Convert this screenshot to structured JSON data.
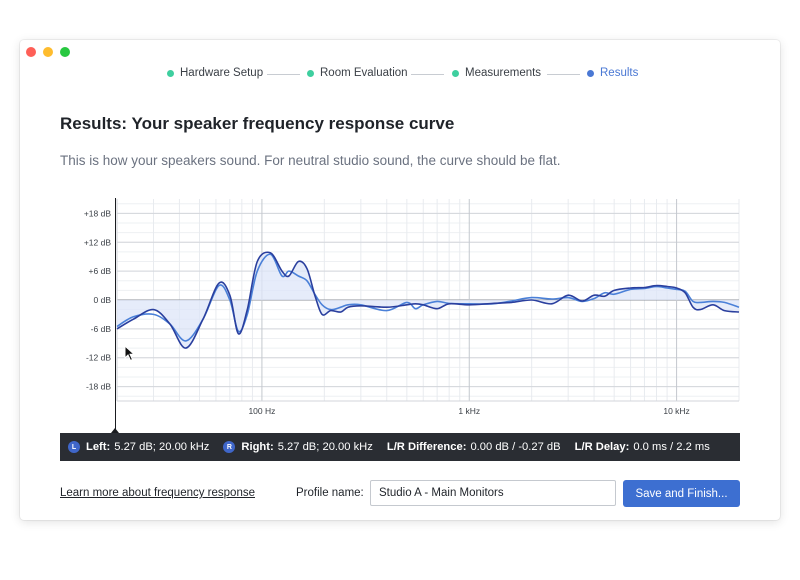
{
  "colors": {
    "step_done": "#3ecf9f",
    "step_current": "#4a78d4",
    "traffic_red": "#fe5f57",
    "traffic_yellow": "#febc2e",
    "traffic_green": "#28c840",
    "curve_dark": "#2a3f9e",
    "curve_light": "#4a80d8",
    "fill": "#dde5f8",
    "accent": "#3d6fd1"
  },
  "steps": [
    {
      "label": "Hardware Setup",
      "state": "done"
    },
    {
      "label": "Room Evaluation",
      "state": "done"
    },
    {
      "label": "Measurements",
      "state": "done"
    },
    {
      "label": "Results",
      "state": "current"
    }
  ],
  "page": {
    "title": "Results: Your speaker frequency response curve",
    "subtitle": "This is how your speakers sound. For neutral studio sound, the curve should be flat."
  },
  "chart_data": {
    "type": "line",
    "x_scale": "log",
    "xlim": [
      20,
      20000
    ],
    "ylim": [
      -21,
      21
    ],
    "grid": true,
    "y_ticks": [
      {
        "value": 18,
        "label": "+18 dB"
      },
      {
        "value": 12,
        "label": "+12 dB"
      },
      {
        "value": 6,
        "label": "+6 dB"
      },
      {
        "value": 0,
        "label": "0 dB"
      },
      {
        "value": -6,
        "label": "-6 dB"
      },
      {
        "value": -12,
        "label": "-12 dB"
      },
      {
        "value": -18,
        "label": "-18 dB"
      }
    ],
    "x_ticks": [
      {
        "value": 100,
        "label": "100 Hz"
      },
      {
        "value": 1000,
        "label": "1 kHz"
      },
      {
        "value": 10000,
        "label": "10 kHz"
      }
    ],
    "series": [
      {
        "name": "Left",
        "x": [
          20,
          24,
          30,
          36,
          43,
          52,
          62,
          70,
          77,
          85,
          95,
          110,
          125,
          135,
          150,
          165,
          180,
          195,
          215,
          240,
          260,
          300,
          400,
          500,
          550,
          600,
          700,
          800,
          1000,
          1300,
          1600,
          2000,
          2500,
          3000,
          3500,
          4000,
          4500,
          5000,
          6000,
          7000,
          8000,
          9000,
          10000,
          11000,
          12000,
          13000,
          15000,
          17000,
          20000
        ],
        "y": [
          -6,
          -4,
          -2,
          -5,
          -10,
          -4,
          3.5,
          1,
          -7,
          -2,
          8,
          9.8,
          6,
          5,
          8,
          6.5,
          1,
          -3,
          -2.2,
          -2.5,
          -1.5,
          -1.2,
          -1.5,
          -1,
          -0.8,
          -1,
          -1.8,
          -0.8,
          -1,
          -0.7,
          -0.5,
          0,
          -0.8,
          1,
          -0.2,
          1,
          0.8,
          2,
          2.5,
          2.6,
          3,
          2.8,
          2.5,
          1.5,
          -1.5,
          -2,
          -1,
          -2.2,
          -2.5
        ]
      },
      {
        "name": "Right",
        "x": [
          20,
          24,
          30,
          36,
          43,
          52,
          62,
          70,
          77,
          85,
          95,
          110,
          125,
          135,
          150,
          165,
          180,
          195,
          215,
          240,
          260,
          300,
          400,
          500,
          550,
          600,
          700,
          800,
          1000,
          1300,
          1600,
          2000,
          2500,
          3000,
          3500,
          4000,
          4500,
          5000,
          6000,
          7000,
          8000,
          9000,
          10000,
          11000,
          12000,
          13000,
          15000,
          17000,
          20000
        ],
        "y": [
          -5.5,
          -3.5,
          -3,
          -5,
          -8.5,
          -4,
          3,
          0,
          -6.5,
          -3,
          6,
          9.5,
          5,
          6,
          5,
          4,
          1.2,
          -1,
          -2,
          -1.5,
          -1,
          -1,
          -2.2,
          -0.5,
          -1.8,
          -1,
          -0.3,
          -0.7,
          -0.8,
          -0.8,
          -0.2,
          0.5,
          0.2,
          0.5,
          -0.3,
          0.3,
          1.5,
          1.2,
          2.2,
          2.4,
          2.8,
          2.5,
          2.2,
          1.8,
          -0.3,
          -0.5,
          -0.3,
          -0.5,
          -1.5
        ]
      }
    ]
  },
  "info": {
    "left_badge": "L",
    "left_label": "Left:",
    "left_value": "5.27 dB; 20.00 kHz",
    "right_badge": "R",
    "right_label": "Right:",
    "right_value": "5.27 dB; 20.00 kHz",
    "diff_label": "L/R Difference:",
    "diff_value": "0.00 dB / -0.27 dB",
    "delay_label": "L/R Delay:",
    "delay_value": "0.0 ms / 2.2 ms"
  },
  "footer": {
    "link": "Learn more about frequency response",
    "profile_label": "Profile name:",
    "profile_value": "Studio A - Main Monitors",
    "save_button": "Save and Finish..."
  }
}
